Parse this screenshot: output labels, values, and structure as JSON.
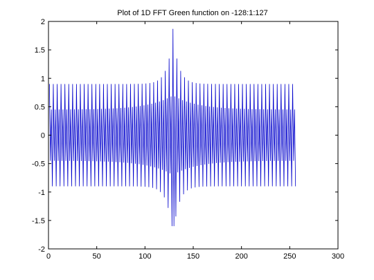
{
  "chart_data": {
    "type": "line",
    "title": "Plot of 1D FFT Green function on -128:1:127",
    "xlabel": "",
    "ylabel": "",
    "xlim": [
      0,
      300
    ],
    "ylim": [
      -2,
      2
    ],
    "xticks": [
      0,
      50,
      100,
      150,
      200,
      250,
      300
    ],
    "yticks": [
      -2,
      -1.5,
      -1,
      -0.5,
      0,
      0.5,
      1,
      1.5,
      2
    ],
    "xtick_labels": [
      "0",
      "50",
      "100",
      "150",
      "200",
      "250",
      "300"
    ],
    "ytick_labels": [
      "-2",
      "-1.5",
      "-1",
      "-0.5",
      "0",
      "0.5",
      "1",
      "1.5",
      "2"
    ],
    "grid": false,
    "series": [
      {
        "color": "#0000cc",
        "x_start": 1,
        "x_end": 256,
        "x_step": 1,
        "peak_x": 129,
        "peak_max": 1.87,
        "peak_min": -1.6,
        "edge_outer_amplitude": 0.9,
        "edge_inner_amplitude": 0.45,
        "description_of_values": "oscillating between positive and negative values each sample"
      }
    ],
    "colors": {
      "axes": "#000000",
      "line": "#0000cc",
      "background": "#ffffff"
    }
  }
}
